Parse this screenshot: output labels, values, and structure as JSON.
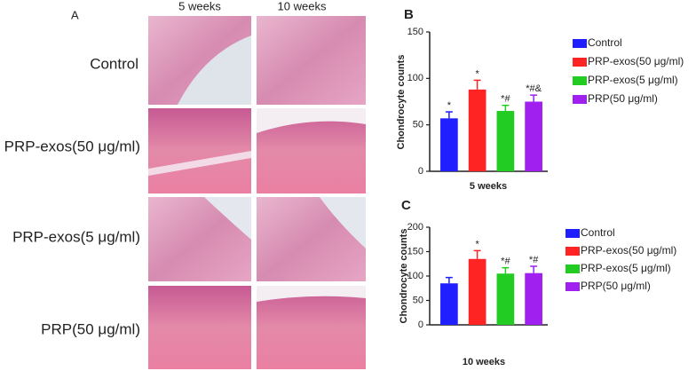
{
  "panel_a": {
    "letter": "A",
    "columns": [
      "5 weeks",
      "10 weeks"
    ],
    "rows": [
      "Control",
      "PRP-exos(50 μg/ml)",
      "PRP-exos(5 μg/ml)",
      "PRP(50 μg/ml)"
    ]
  },
  "chart_data": [
    {
      "type": "bar",
      "panel": "B",
      "x_label": "5 weeks",
      "y_label": "Chondrocyte counts",
      "ylim": [
        0,
        150
      ],
      "yticks": [
        0,
        50,
        100,
        150
      ],
      "series": [
        {
          "name": "Control",
          "color": "#1f1fff",
          "values": [
            57
          ],
          "errors": [
            7
          ],
          "significance": [
            "*"
          ]
        },
        {
          "name": "PRP-exos(50 μg/ml)",
          "color": "#ff2424",
          "values": [
            88
          ],
          "errors": [
            10
          ],
          "significance": [
            "*"
          ]
        },
        {
          "name": "PRP-exos(5 μg/ml)",
          "color": "#22cc22",
          "values": [
            65
          ],
          "errors": [
            6
          ],
          "significance": [
            "*#"
          ]
        },
        {
          "name": "PRP(50 μg/ml)",
          "color": "#a020f0",
          "values": [
            75
          ],
          "errors": [
            7
          ],
          "significance": [
            "*#&"
          ]
        }
      ]
    },
    {
      "type": "bar",
      "panel": "C",
      "x_label": "10 weeks",
      "y_label": "Chondrocyte counts",
      "ylim": [
        0,
        200
      ],
      "yticks": [
        0,
        50,
        100,
        150,
        200
      ],
      "series": [
        {
          "name": "Control",
          "color": "#1f1fff",
          "values": [
            85
          ],
          "errors": [
            12
          ],
          "significance": [
            null
          ]
        },
        {
          "name": "PRP-exos(50 μg/ml)",
          "color": "#ff2424",
          "values": [
            135
          ],
          "errors": [
            17
          ],
          "significance": [
            "*"
          ]
        },
        {
          "name": "PRP-exos(5 μg/ml)",
          "color": "#22cc22",
          "values": [
            105
          ],
          "errors": [
            12
          ],
          "significance": [
            "*#"
          ]
        },
        {
          "name": "PRP(50 μg/ml)",
          "color": "#a020f0",
          "values": [
            106
          ],
          "errors": [
            14
          ],
          "significance": [
            "*#"
          ]
        }
      ]
    }
  ]
}
